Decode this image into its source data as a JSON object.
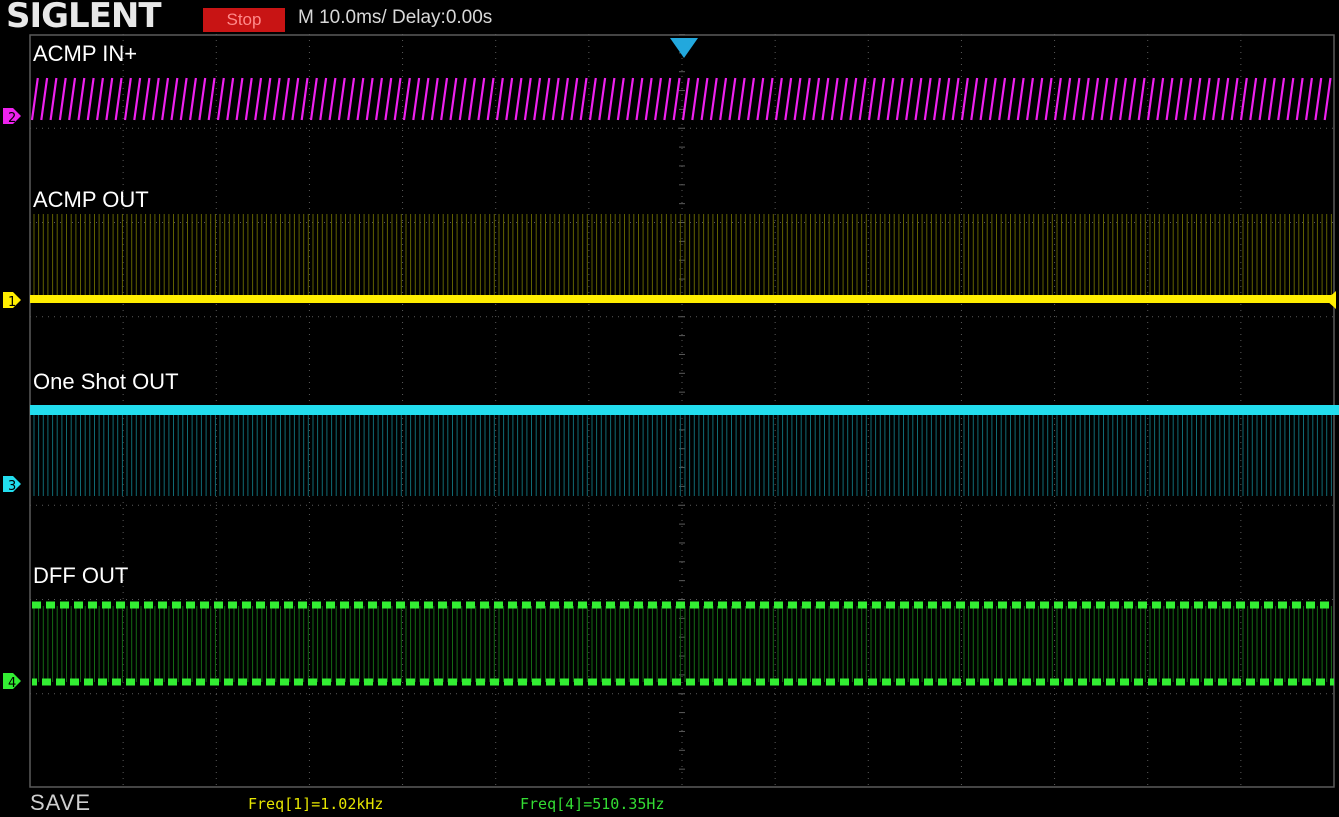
{
  "header": {
    "brand": "SIGLENT",
    "run_status": "Stop",
    "timebase": "M 10.0ms/ Delay:0.00s"
  },
  "colors": {
    "ch1": "#ffee00",
    "ch2": "#ee22ee",
    "ch3": "#22ddee",
    "ch4": "#33ee33",
    "grid": "#5a5a5a",
    "trigger_marker": "#22a8dd",
    "stop_badge": "#c81414"
  },
  "traces": {
    "ch2_label": "ACMP IN+",
    "ch1_label": "ACMP OUT",
    "ch3_label": "One Shot OUT",
    "ch4_label": "DFF OUT"
  },
  "channel_markers": {
    "ch1": "1",
    "ch2": "2",
    "ch3": "3",
    "ch4": "4"
  },
  "footer": {
    "save_label": "SAVE",
    "freq1": "Freq[1]=1.02kHz",
    "freq4": "Freq[4]=510.35Hz"
  }
}
